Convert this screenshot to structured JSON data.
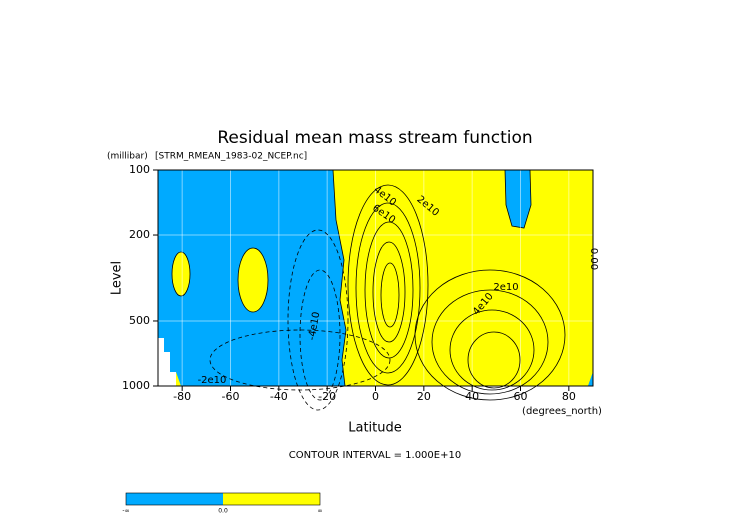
{
  "chart_data": {
    "type": "contour",
    "title": "Residual mean mass stream function",
    "subtitle": "[STRM_RMEAN_1983-02_NCEP.nc]",
    "y_unit": "(millibar)",
    "y_label": "Level",
    "x_label": "Latitude",
    "x_unit": "(degrees_north)",
    "footer": "CONTOUR INTERVAL = 1.000E+10",
    "xlim": [
      -90,
      90
    ],
    "xticks": [
      -80,
      -60,
      -40,
      -20,
      0,
      20,
      40,
      60,
      80
    ],
    "ylim": [
      1000,
      100
    ],
    "yticks": [
      100,
      200,
      500,
      1000
    ],
    "log_y": true,
    "grid": true,
    "annotations": [
      "4e10",
      "2e10",
      "6e10",
      "2e10",
      "4e10",
      "-4e10",
      "-2e10",
      "0.00"
    ],
    "colorbar": {
      "labels": [
        "-∞",
        "0.0",
        "∞"
      ],
      "colors": [
        "#00aaff",
        "#ffff00"
      ]
    }
  }
}
